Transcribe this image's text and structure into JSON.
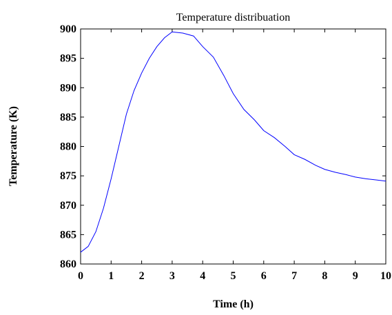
{
  "chart_data": {
    "type": "line",
    "title": "Temperature distribuation",
    "xlabel": "Time (h)",
    "ylabel": "Temperature (K)",
    "xlim": [
      0,
      10
    ],
    "ylim": [
      860,
      900
    ],
    "xticks": [
      0,
      1,
      2,
      3,
      4,
      5,
      6,
      7,
      8,
      9,
      10
    ],
    "yticks": [
      860,
      865,
      870,
      875,
      880,
      885,
      890,
      895,
      900
    ],
    "grid": false,
    "series": [
      {
        "color": "#0000ff",
        "x": [
          0,
          0.25,
          0.5,
          0.75,
          1.0,
          1.25,
          1.5,
          1.75,
          2.0,
          2.25,
          2.5,
          2.75,
          3.0,
          3.35,
          3.7,
          4.0,
          4.35,
          4.7,
          5.0,
          5.35,
          5.7,
          6.0,
          6.35,
          6.7,
          7.0,
          7.35,
          7.7,
          8.0,
          8.35,
          8.7,
          9.0,
          9.35,
          9.7,
          10.0
        ],
        "y": [
          862.0,
          863.0,
          865.5,
          869.5,
          874.5,
          880.0,
          885.5,
          889.5,
          892.5,
          895.0,
          897.0,
          898.5,
          899.5,
          899.3,
          898.8,
          897.0,
          895.2,
          892.0,
          889.0,
          886.3,
          884.5,
          882.7,
          881.5,
          880.0,
          878.6,
          877.8,
          876.8,
          876.1,
          875.6,
          875.2,
          874.8,
          874.5,
          874.3,
          874.1
        ]
      }
    ]
  }
}
